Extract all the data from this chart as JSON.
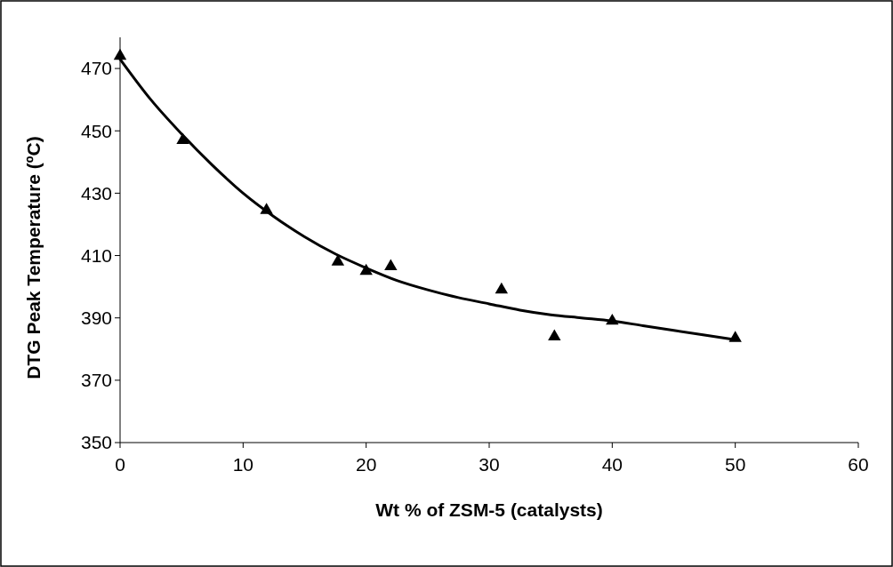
{
  "chart_data": {
    "type": "scatter",
    "xlabel": "Wt % of ZSM-5 (catalysts)",
    "ylabel": "DTG Peak Temperature (ºC)",
    "xlim": [
      0,
      60
    ],
    "xticks": [
      0,
      10,
      20,
      30,
      40,
      50,
      60
    ],
    "ylim": [
      350,
      480
    ],
    "yticks": [
      350,
      370,
      390,
      410,
      430,
      450,
      470
    ],
    "grid": false,
    "series": [
      {
        "marker": "triangle",
        "color": "#000000",
        "x": [
          0,
          5.1,
          11.9,
          17.7,
          20,
          22,
          31,
          35.3,
          40,
          50
        ],
        "values": [
          474,
          447,
          424.5,
          408,
          405,
          406.5,
          399,
          384,
          389,
          383.5
        ]
      },
      {
        "type": "line",
        "marker": "none",
        "line_style": "solid",
        "color": "#000000",
        "x": [
          0,
          2.5,
          5,
          7.5,
          10,
          12.5,
          15,
          17.5,
          20,
          22.5,
          25,
          27.5,
          30,
          32.5,
          35,
          37.5,
          40,
          42.5,
          45,
          47.5,
          50
        ],
        "values": [
          473,
          460,
          449,
          439,
          430,
          422.5,
          416,
          410.5,
          406,
          402,
          399,
          396.5,
          394.5,
          392.5,
          391,
          390,
          389,
          387.5,
          386,
          384.5,
          383
        ]
      }
    ]
  }
}
